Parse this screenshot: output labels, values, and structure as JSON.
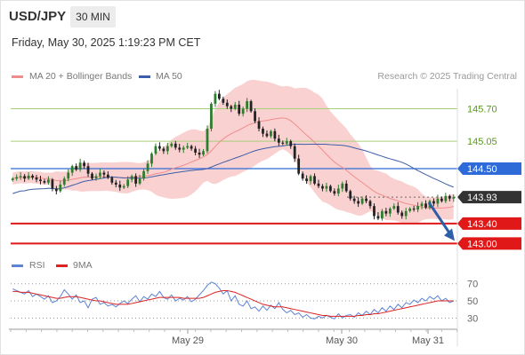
{
  "header": {
    "symbol": "USD/JPY",
    "timeframe": "30 MIN",
    "datetime": "Friday, May 30, 2025 1:19:23 PM CET"
  },
  "legend": {
    "ma20_bb": "MA 20 + Bollinger Bands",
    "ma50": "MA 50",
    "rsi": "RSI",
    "rsi_ma": "9MA"
  },
  "credit": "Research © 2025 Trading Central",
  "colors": {
    "bollinger": "#f7b2b2",
    "ma20": "#f08c8c",
    "ma50": "#3c5ea8",
    "resistance": "#a6cf7a",
    "resistance_text": "#5a9a1c",
    "pivot": "#2f6bd8",
    "support": "#e01818",
    "current": "#333333",
    "candle_up": "#2c7d2c",
    "candle_down": "#222222",
    "rsi": "#5c84d6",
    "rsi_ma": "#dd2222",
    "arrow": "#2e5fa6"
  },
  "chart_data": [
    {
      "type": "candlestick",
      "indicators": [
        "MA 20 + Bollinger Bands",
        "MA 50"
      ],
      "x_tick_labels": [
        "May 29",
        "May 30",
        "May 31"
      ],
      "ylim": [
        142.9,
        146.1
      ],
      "levels": [
        {
          "value": 145.7,
          "label": "145.70",
          "role": "resistance"
        },
        {
          "value": 145.05,
          "label": "145.05",
          "role": "resistance"
        },
        {
          "value": 144.5,
          "label": "144.50",
          "role": "pivot"
        },
        {
          "value": 143.93,
          "label": "143.93",
          "role": "current"
        },
        {
          "value": 143.4,
          "label": "143.40",
          "role": "support"
        },
        {
          "value": 143.0,
          "label": "143.00",
          "role": "support"
        }
      ],
      "close": [
        144.3,
        144.33,
        144.35,
        144.3,
        144.36,
        144.32,
        144.28,
        144.25,
        144.22,
        144.28,
        144.1,
        144.05,
        144.18,
        144.3,
        144.42,
        144.55,
        144.48,
        144.62,
        144.55,
        144.4,
        144.3,
        144.35,
        144.42,
        144.38,
        144.32,
        144.22,
        144.18,
        144.12,
        144.15,
        144.28,
        144.35,
        144.2,
        144.3,
        144.45,
        144.6,
        144.8,
        144.95,
        144.9,
        144.85,
        144.95,
        145.0,
        144.92,
        144.88,
        144.92,
        144.95,
        144.9,
        144.82,
        144.78,
        144.85,
        145.3,
        145.8,
        146.0,
        145.9,
        145.82,
        145.75,
        145.7,
        145.78,
        145.6,
        145.7,
        145.85,
        145.65,
        145.45,
        145.3,
        145.2,
        145.15,
        145.25,
        145.1,
        145.02,
        145.0,
        145.05,
        144.95,
        144.7,
        144.4,
        144.3,
        144.25,
        144.35,
        144.2,
        144.15,
        144.1,
        144.15,
        144.05,
        144.0,
        144.1,
        144.2,
        144.05,
        143.9,
        143.85,
        143.8,
        143.9,
        143.85,
        143.75,
        143.55,
        143.5,
        143.65,
        143.6,
        143.7,
        143.75,
        143.62,
        143.55,
        143.65,
        143.7,
        143.68,
        143.75,
        143.8,
        143.72,
        143.85,
        143.8,
        143.9,
        143.85,
        143.95,
        143.9,
        143.93
      ]
    },
    {
      "type": "line",
      "series_names": [
        "RSI",
        "9MA"
      ],
      "ylim": [
        20,
        78
      ],
      "y_tick_labels": [
        70,
        50,
        30
      ],
      "x_tick_labels": [
        "May 29",
        "May 30",
        "May 31"
      ],
      "rsi": [
        64,
        62,
        60,
        58,
        62,
        55,
        58,
        55,
        52,
        56,
        48,
        50,
        55,
        63,
        58,
        52,
        57,
        48,
        50,
        42,
        52,
        54,
        46,
        48,
        44,
        46,
        43,
        47,
        50,
        47,
        52,
        56,
        49,
        55,
        52,
        58,
        55,
        61,
        54,
        52,
        57,
        50,
        53,
        51,
        55,
        49,
        52,
        57,
        62,
        68,
        72,
        70,
        65,
        58,
        62,
        50,
        56,
        46,
        44,
        50,
        41,
        43,
        38,
        44,
        39,
        45,
        41,
        48,
        40,
        36,
        39,
        34,
        36,
        31,
        34,
        30,
        29,
        32,
        30,
        33,
        31,
        29,
        35,
        30,
        33,
        34,
        31,
        36,
        33,
        38,
        34,
        40,
        36,
        42,
        38,
        44,
        40,
        46,
        42,
        48,
        46,
        51,
        48,
        53,
        50,
        55,
        52,
        56,
        50,
        53,
        48,
        50
      ],
      "rsi_ma": [
        61,
        61,
        60,
        60,
        60,
        59,
        58,
        57,
        56,
        55,
        54,
        53,
        53,
        54,
        55,
        55,
        55,
        54,
        53,
        52,
        51,
        50,
        50,
        49,
        48,
        47,
        46,
        46,
        46,
        46,
        47,
        48,
        49,
        50,
        51,
        52,
        53,
        54,
        54,
        54,
        54,
        54,
        54,
        53,
        53,
        53,
        53,
        53,
        54,
        56,
        58,
        60,
        61,
        62,
        62,
        61,
        60,
        58,
        56,
        54,
        52,
        50,
        48,
        46,
        45,
        44,
        43,
        43,
        43,
        42,
        41,
        40,
        39,
        38,
        37,
        36,
        35,
        34,
        33,
        33,
        32,
        32,
        32,
        32,
        32,
        32,
        32,
        33,
        33,
        34,
        34,
        35,
        35,
        36,
        37,
        38,
        39,
        40,
        41,
        42,
        43,
        44,
        45,
        46,
        47,
        48,
        49,
        50,
        50,
        50,
        50,
        50
      ]
    }
  ]
}
